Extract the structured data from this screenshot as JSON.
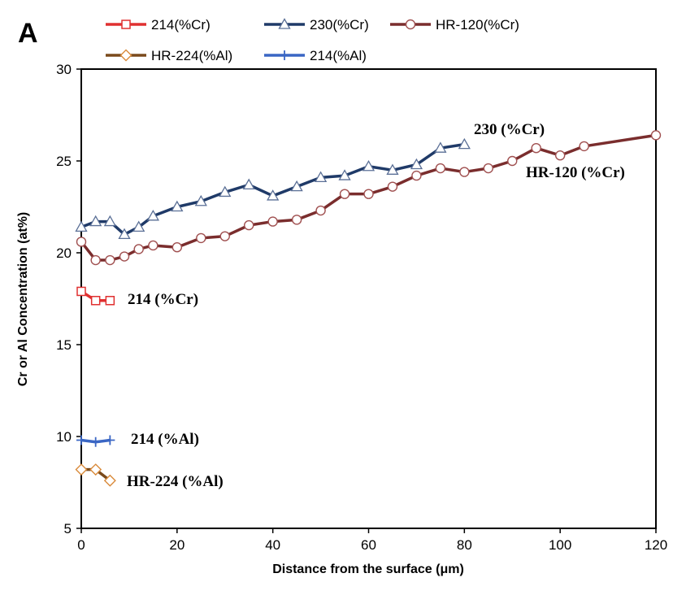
{
  "panel_label": "A",
  "chart_data": {
    "type": "line",
    "xlabel": "Distance from the surface (μm)",
    "ylabel": "Cr or Al Concentration (at%)",
    "xlim": [
      0,
      120
    ],
    "ylim": [
      5,
      30
    ],
    "xticks": [
      "0",
      "20",
      "40",
      "60",
      "80",
      "100",
      "120"
    ],
    "yticks": [
      "5",
      "10",
      "15",
      "20",
      "25",
      "30"
    ],
    "grid": false,
    "legend_position": "top",
    "series": [
      {
        "name": "214(%Cr)",
        "annotation": "214 (%Cr)",
        "color": "#e03030",
        "line_color": "#e03030",
        "marker": "square",
        "x": [
          0,
          3,
          6
        ],
        "y": [
          17.9,
          17.4,
          17.4
        ]
      },
      {
        "name": "230(%Cr)",
        "annotation": "230 (%Cr)",
        "color": "#1f3a68",
        "line_color": "#1f3a68",
        "marker": "triangle",
        "x": [
          0,
          3,
          6,
          9,
          12,
          15,
          20,
          25,
          30,
          35,
          40,
          45,
          50,
          55,
          60,
          65,
          70,
          75,
          80
        ],
        "y": [
          21.4,
          21.7,
          21.7,
          21.0,
          21.4,
          22.0,
          22.5,
          22.8,
          23.3,
          23.7,
          23.1,
          23.6,
          24.1,
          24.2,
          24.7,
          24.5,
          24.8,
          25.7,
          25.9
        ]
      },
      {
        "name": "HR-120(%Cr)",
        "annotation": "HR-120 (%Cr)",
        "color": "#a05050",
        "line_color": "#7a2d2d",
        "marker": "circle",
        "x": [
          0,
          3,
          6,
          9,
          12,
          15,
          20,
          25,
          30,
          35,
          40,
          45,
          50,
          55,
          60,
          65,
          70,
          75,
          80,
          85,
          90,
          95,
          100,
          105,
          120
        ],
        "y": [
          20.6,
          19.6,
          19.6,
          19.8,
          20.2,
          20.4,
          20.3,
          20.8,
          20.9,
          21.5,
          21.7,
          21.8,
          22.3,
          23.2,
          23.2,
          23.6,
          24.2,
          24.6,
          24.4,
          24.6,
          25.0,
          25.7,
          25.3,
          25.8,
          26.4
        ]
      },
      {
        "name": "HR-224(%Al)",
        "annotation": "HR-224 (%Al)",
        "color": "#d98a3a",
        "line_color": "#7a4a1c",
        "marker": "diamond",
        "x": [
          0,
          3,
          6
        ],
        "y": [
          8.2,
          8.2,
          7.6
        ]
      },
      {
        "name": "214(%Al)",
        "annotation": "214 (%Al)",
        "color": "#3a66c4",
        "line_color": "#3a66c4",
        "marker": "plus",
        "x": [
          0,
          3,
          6
        ],
        "y": [
          9.8,
          9.7,
          9.8
        ]
      }
    ]
  }
}
